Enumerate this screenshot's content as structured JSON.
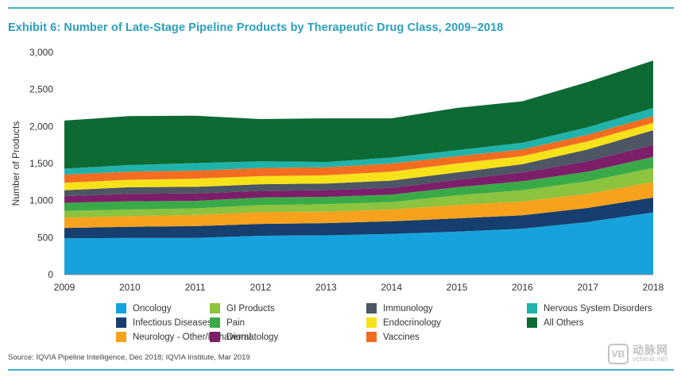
{
  "title": "Exhibit 6: Number of Late-Stage Pipeline Products by Therapeutic Drug Class, 2009–2018",
  "source": "Source: IQVIA Pipeline Intelligence, Dec 2018; IQVIA Institute, Mar 2019",
  "watermark": {
    "logo": "VB",
    "name_cn": "动脉网",
    "url": "vcbeat.net"
  },
  "chart_data": {
    "type": "area",
    "stacked": true,
    "title": "Exhibit 6: Number of Late-Stage Pipeline Products by Therapeutic Drug Class, 2009–2018",
    "xlabel": "",
    "ylabel": "Number of Products",
    "ylim": [
      0,
      3000
    ],
    "yticks": [
      0,
      500,
      1000,
      1500,
      2000,
      2500,
      3000
    ],
    "ytick_labels": [
      "0",
      "500",
      "1,000",
      "1,500",
      "2,000",
      "2,500",
      "3,000"
    ],
    "x": [
      "2009",
      "2010",
      "2011",
      "2012",
      "2013",
      "2014",
      "2015",
      "2016",
      "2017",
      "2018"
    ],
    "grid": false,
    "legend_position": "bottom",
    "series": [
      {
        "name": "Oncology",
        "color": "#16a3dd",
        "values": [
          490,
          495,
          495,
          525,
          530,
          550,
          580,
          620,
          710,
          840
        ]
      },
      {
        "name": "Infectious Diseases*",
        "color": "#163e6e",
        "values": [
          140,
          150,
          160,
          160,
          165,
          170,
          180,
          180,
          190,
          200
        ]
      },
      {
        "name": "Neurology - Other/Behavioral",
        "color": "#f6a21c",
        "values": [
          140,
          145,
          150,
          160,
          155,
          160,
          180,
          190,
          190,
          210
        ]
      },
      {
        "name": "GI Products",
        "color": "#8cc33f",
        "values": [
          90,
          90,
          90,
          95,
          100,
          100,
          130,
          150,
          170,
          190
        ]
      },
      {
        "name": "Pain",
        "color": "#3aaa48",
        "values": [
          110,
          110,
          100,
          100,
          100,
          100,
          110,
          120,
          130,
          150
        ]
      },
      {
        "name": "Dermatology",
        "color": "#7d1e6a",
        "values": [
          90,
          100,
          100,
          90,
          90,
          90,
          100,
          120,
          140,
          160
        ]
      },
      {
        "name": "Immunology",
        "color": "#4d5664",
        "values": [
          80,
          90,
          90,
          90,
          90,
          100,
          100,
          110,
          160,
          200
        ]
      },
      {
        "name": "Endocrinology",
        "color": "#f7e21a",
        "values": [
          100,
          100,
          110,
          110,
          110,
          120,
          120,
          110,
          110,
          100
        ]
      },
      {
        "name": "Vaccines",
        "color": "#f26d22",
        "values": [
          110,
          110,
          110,
          110,
          110,
          110,
          100,
          90,
          90,
          90
        ]
      },
      {
        "name": "Nervous System Disorders",
        "color": "#20b3ab",
        "values": [
          80,
          90,
          100,
          90,
          70,
          80,
          80,
          90,
          100,
          110
        ]
      },
      {
        "name": "All Others",
        "color": "#0d6a34",
        "values": [
          650,
          660,
          640,
          570,
          590,
          530,
          570,
          560,
          610,
          640
        ]
      }
    ]
  }
}
